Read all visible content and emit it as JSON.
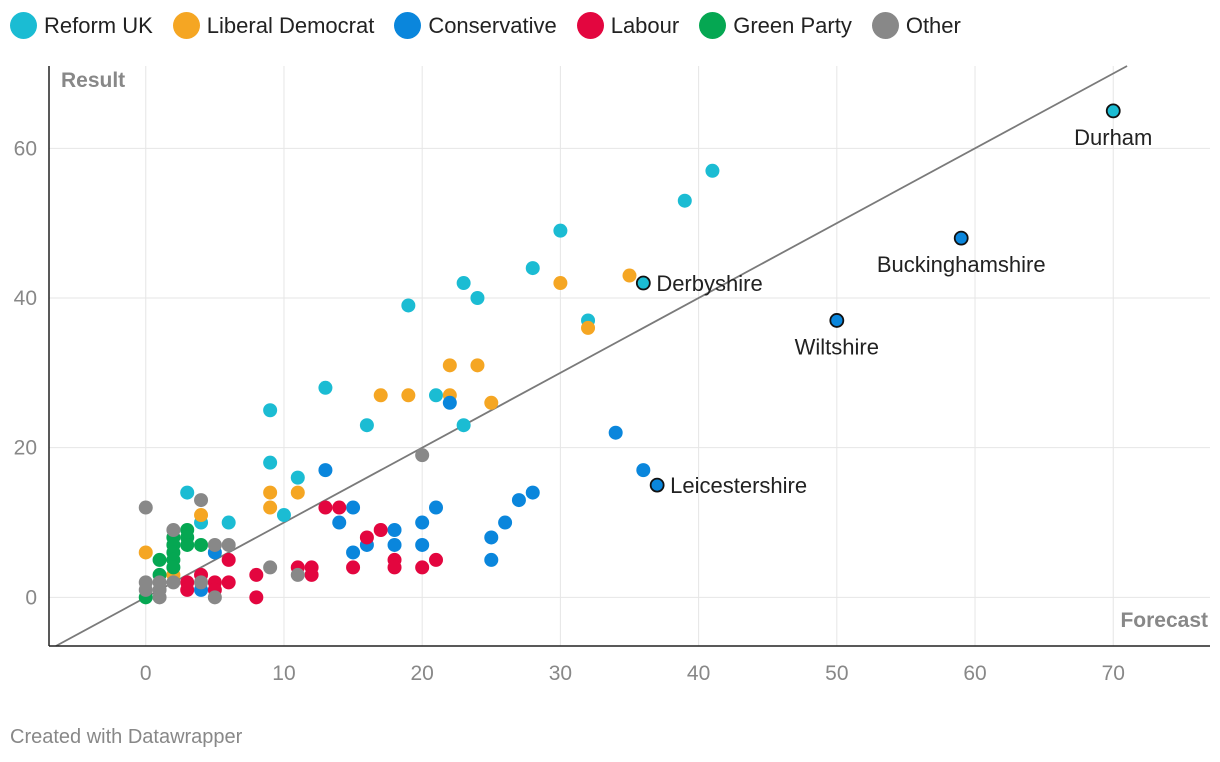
{
  "legend": [
    {
      "key": "reform",
      "label": "Reform UK",
      "color": "#1bbcd3"
    },
    {
      "key": "libdem",
      "label": "Liberal Democrat",
      "color": "#f5a623"
    },
    {
      "key": "con",
      "label": "Conservative",
      "color": "#0a86dc"
    },
    {
      "key": "lab",
      "label": "Labour",
      "color": "#e3063f"
    },
    {
      "key": "green",
      "label": "Green Party",
      "color": "#05a752"
    },
    {
      "key": "other",
      "label": "Other",
      "color": "#888888"
    }
  ],
  "footer": "Created with Datawrapper",
  "chart_data": {
    "type": "scatter",
    "title": "",
    "xlabel": "Forecast",
    "ylabel": "Result",
    "xlim": [
      -7,
      77
    ],
    "ylim": [
      -6.5,
      71
    ],
    "xticks": [
      0,
      10,
      20,
      30,
      40,
      50,
      60,
      70
    ],
    "yticks": [
      0,
      20,
      40,
      60
    ],
    "reference_line": "y = x",
    "series": [
      {
        "name": "Reform UK",
        "key": "reform",
        "points": [
          [
            41,
            57
          ],
          [
            39,
            53
          ],
          [
            30,
            49
          ],
          [
            28,
            44
          ],
          [
            23,
            42
          ],
          [
            24,
            40
          ],
          [
            19,
            39
          ],
          [
            32,
            37
          ],
          [
            13,
            28
          ],
          [
            21,
            27
          ],
          [
            9,
            25
          ],
          [
            16,
            23
          ],
          [
            23,
            23
          ],
          [
            9,
            18
          ],
          [
            11,
            16
          ],
          [
            3,
            14
          ],
          [
            10,
            11
          ],
          [
            4,
            10
          ],
          [
            6,
            10
          ]
        ]
      },
      {
        "name": "Liberal Democrat",
        "key": "libdem",
        "points": [
          [
            35,
            43
          ],
          [
            30,
            42
          ],
          [
            32,
            36
          ],
          [
            22,
            31
          ],
          [
            24,
            31
          ],
          [
            17,
            27
          ],
          [
            19,
            27
          ],
          [
            22,
            27
          ],
          [
            25,
            26
          ],
          [
            9,
            14
          ],
          [
            11,
            14
          ],
          [
            9,
            12
          ],
          [
            4,
            11
          ],
          [
            0,
            6
          ],
          [
            2,
            3
          ]
        ]
      },
      {
        "name": "Conservative",
        "key": "con",
        "points": [
          [
            22,
            26
          ],
          [
            34,
            22
          ],
          [
            36,
            17
          ],
          [
            13,
            17
          ],
          [
            28,
            14
          ],
          [
            27,
            13
          ],
          [
            15,
            12
          ],
          [
            21,
            12
          ],
          [
            14,
            10
          ],
          [
            20,
            10
          ],
          [
            26,
            10
          ],
          [
            18,
            9
          ],
          [
            25,
            8
          ],
          [
            16,
            7
          ],
          [
            18,
            7
          ],
          [
            20,
            7
          ],
          [
            15,
            6
          ],
          [
            5,
            6
          ],
          [
            25,
            5
          ],
          [
            4,
            1
          ]
        ]
      },
      {
        "name": "Labour",
        "key": "lab",
        "points": [
          [
            13,
            12
          ],
          [
            14,
            12
          ],
          [
            17,
            9
          ],
          [
            16,
            8
          ],
          [
            6,
            5
          ],
          [
            18,
            5
          ],
          [
            21,
            5
          ],
          [
            11,
            4
          ],
          [
            12,
            4
          ],
          [
            15,
            4
          ],
          [
            18,
            4
          ],
          [
            20,
            4
          ],
          [
            8,
            3
          ],
          [
            12,
            3
          ],
          [
            4,
            3
          ],
          [
            3,
            2
          ],
          [
            5,
            2
          ],
          [
            6,
            2
          ],
          [
            3,
            1
          ],
          [
            5,
            1
          ],
          [
            8,
            0
          ]
        ]
      },
      {
        "name": "Green Party",
        "key": "green",
        "points": [
          [
            3,
            9
          ],
          [
            2,
            8
          ],
          [
            3,
            8
          ],
          [
            2,
            7
          ],
          [
            3,
            7
          ],
          [
            4,
            7
          ],
          [
            2,
            6
          ],
          [
            1,
            5
          ],
          [
            2,
            5
          ],
          [
            2,
            4
          ],
          [
            1,
            3
          ],
          [
            0,
            0
          ]
        ]
      },
      {
        "name": "Other",
        "key": "other",
        "points": [
          [
            20,
            19
          ],
          [
            4,
            13
          ],
          [
            0,
            12
          ],
          [
            2,
            9
          ],
          [
            5,
            7
          ],
          [
            6,
            7
          ],
          [
            9,
            4
          ],
          [
            11,
            3
          ],
          [
            0,
            2
          ],
          [
            1,
            2
          ],
          [
            2,
            2
          ],
          [
            4,
            2
          ],
          [
            0,
            1
          ],
          [
            1,
            1
          ],
          [
            1,
            0
          ],
          [
            5,
            0
          ]
        ]
      }
    ],
    "highlighted": [
      {
        "label": "Durham",
        "key": "reform",
        "x": 70,
        "y": 65,
        "label_pos": "below"
      },
      {
        "label": "Buckinghamshire",
        "key": "con",
        "x": 59,
        "y": 48,
        "label_pos": "below"
      },
      {
        "label": "Derbyshire",
        "key": "reform",
        "x": 36,
        "y": 42,
        "label_pos": "right"
      },
      {
        "label": "Wiltshire",
        "key": "con",
        "x": 50,
        "y": 37,
        "label_pos": "below"
      },
      {
        "label": "Leicestershire",
        "key": "con",
        "x": 37,
        "y": 15,
        "label_pos": "right"
      }
    ]
  }
}
